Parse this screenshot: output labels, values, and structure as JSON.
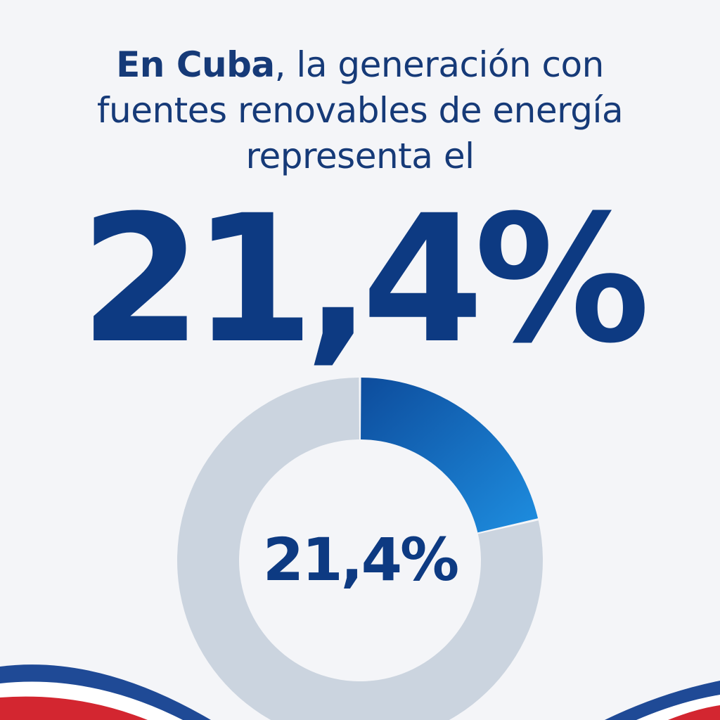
{
  "headline": {
    "bold": "En Cuba",
    "line1_rest": ", la generación con",
    "line2": "fuentes renovables de energía",
    "line3": "representa el"
  },
  "big_value": "21,4%",
  "chart_data": {
    "type": "pie",
    "style": "donut",
    "slices": [
      {
        "value": 21.4
      },
      {
        "value": 78.6
      }
    ],
    "center_label": "21,4%",
    "colors": {
      "highlight_start": "#0d4c9c",
      "highlight_end": "#1e8ee0",
      "remainder": "#cbd4df",
      "center_label": "#0d3a82"
    }
  },
  "flag_colors": {
    "blue": "#1f4a96",
    "red": "#d32630",
    "white": "#ffffff"
  }
}
